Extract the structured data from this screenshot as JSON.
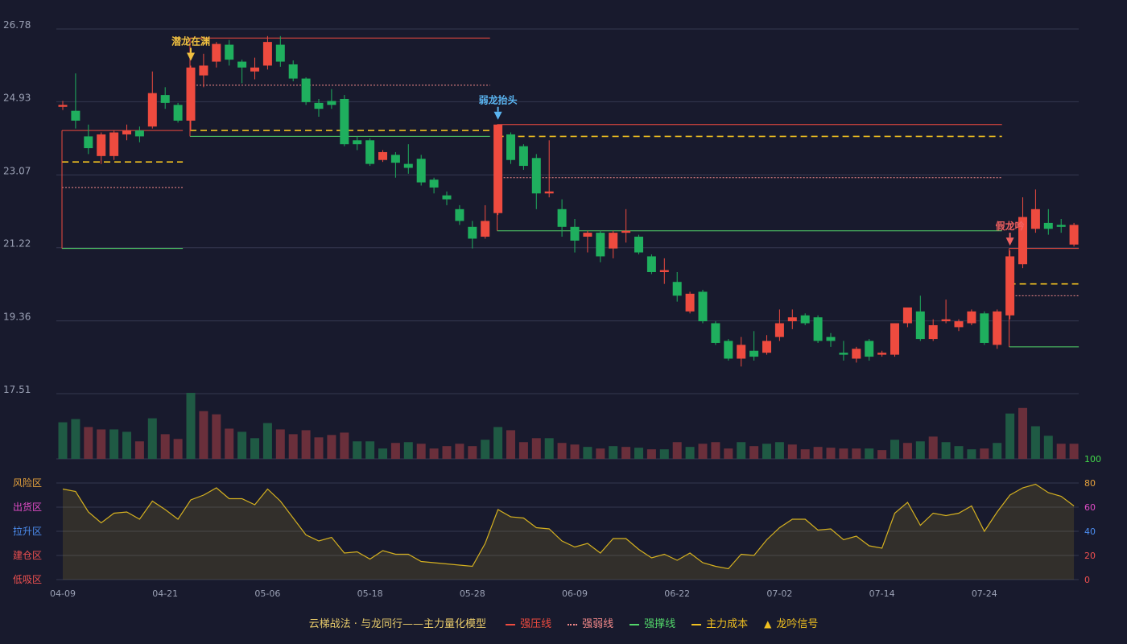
{
  "chart_data": {
    "type": "candlestick",
    "price_axis": {
      "ticks": [
        26.78,
        24.93,
        23.07,
        21.22,
        19.36,
        17.51
      ],
      "min": 17.51,
      "max": 26.78,
      "grid": true
    },
    "date_labels": [
      {
        "i": 0,
        "label": "04-09"
      },
      {
        "i": 8,
        "label": "04-21"
      },
      {
        "i": 16,
        "label": "05-06"
      },
      {
        "i": 24,
        "label": "05-18"
      },
      {
        "i": 32,
        "label": "05-28"
      },
      {
        "i": 40,
        "label": "06-09"
      },
      {
        "i": 48,
        "label": "06-22"
      },
      {
        "i": 56,
        "label": "07-02"
      },
      {
        "i": 64,
        "label": "07-14"
      },
      {
        "i": 72,
        "label": "07-24"
      }
    ],
    "candles": [
      [
        24.8,
        24.85,
        24.72,
        24.95
      ],
      [
        24.7,
        24.45,
        24.25,
        25.65
      ],
      [
        24.05,
        23.75,
        23.6,
        24.35
      ],
      [
        23.55,
        24.1,
        23.35,
        24.15
      ],
      [
        23.55,
        24.15,
        23.45,
        24.2
      ],
      [
        24.1,
        24.2,
        23.95,
        24.35
      ],
      [
        24.2,
        24.05,
        23.9,
        24.3
      ],
      [
        24.3,
        25.15,
        24.25,
        25.7
      ],
      [
        25.1,
        24.9,
        24.75,
        25.3
      ],
      [
        24.85,
        24.45,
        24.4,
        24.9
      ],
      [
        24.45,
        25.8,
        24.2,
        25.85
      ],
      [
        25.6,
        25.85,
        25.3,
        26.15
      ],
      [
        25.95,
        26.4,
        25.8,
        26.45
      ],
      [
        26.38,
        26.0,
        25.85,
        26.5
      ],
      [
        25.95,
        25.8,
        25.4,
        26.0
      ],
      [
        25.7,
        25.8,
        25.5,
        26.05
      ],
      [
        25.85,
        26.45,
        25.75,
        26.6
      ],
      [
        26.38,
        25.95,
        25.82,
        26.6
      ],
      [
        25.88,
        25.52,
        25.45,
        25.98
      ],
      [
        25.52,
        24.92,
        24.85,
        25.55
      ],
      [
        24.9,
        24.75,
        24.55,
        25.0
      ],
      [
        24.95,
        24.85,
        24.75,
        25.25
      ],
      [
        25.0,
        23.85,
        23.8,
        25.1
      ],
      [
        23.95,
        23.85,
        23.7,
        24.05
      ],
      [
        23.95,
        23.35,
        23.3,
        24.0
      ],
      [
        23.45,
        23.65,
        23.4,
        23.7
      ],
      [
        23.58,
        23.38,
        23.0,
        23.65
      ],
      [
        23.35,
        23.25,
        23.1,
        23.85
      ],
      [
        23.48,
        22.88,
        22.8,
        23.58
      ],
      [
        22.95,
        22.75,
        22.6,
        23.0
      ],
      [
        22.55,
        22.45,
        22.3,
        22.65
      ],
      [
        22.2,
        21.9,
        21.8,
        22.3
      ],
      [
        21.75,
        21.45,
        21.2,
        21.9
      ],
      [
        21.5,
        21.9,
        21.45,
        22.3
      ],
      [
        22.1,
        24.35,
        22.05,
        24.35
      ],
      [
        24.1,
        23.45,
        23.35,
        24.15
      ],
      [
        23.8,
        23.3,
        23.2,
        23.85
      ],
      [
        23.5,
        22.6,
        22.2,
        23.6
      ],
      [
        22.6,
        22.65,
        22.5,
        23.95
      ],
      [
        22.2,
        21.75,
        21.5,
        22.45
      ],
      [
        21.75,
        21.4,
        21.1,
        21.95
      ],
      [
        21.5,
        21.6,
        21.1,
        21.65
      ],
      [
        21.6,
        21.0,
        20.85,
        21.65
      ],
      [
        21.2,
        21.6,
        20.95,
        21.65
      ],
      [
        21.6,
        21.65,
        21.35,
        22.2
      ],
      [
        21.5,
        21.1,
        21.05,
        21.55
      ],
      [
        21.0,
        20.6,
        20.55,
        21.05
      ],
      [
        20.6,
        20.65,
        20.3,
        20.95
      ],
      [
        20.35,
        20.0,
        19.85,
        20.6
      ],
      [
        19.6,
        20.05,
        19.55,
        20.1
      ],
      [
        20.1,
        19.35,
        19.3,
        20.15
      ],
      [
        19.3,
        18.8,
        18.75,
        19.35
      ],
      [
        18.85,
        18.4,
        18.35,
        18.9
      ],
      [
        18.4,
        18.75,
        18.2,
        18.95
      ],
      [
        18.6,
        18.45,
        18.35,
        19.1
      ],
      [
        18.55,
        18.85,
        18.5,
        19.0
      ],
      [
        18.95,
        19.3,
        18.85,
        19.65
      ],
      [
        19.35,
        19.45,
        19.15,
        19.65
      ],
      [
        19.5,
        19.3,
        19.25,
        19.55
      ],
      [
        19.45,
        18.85,
        18.8,
        19.5
      ],
      [
        18.95,
        18.85,
        18.7,
        19.05
      ],
      [
        18.55,
        18.5,
        18.35,
        18.85
      ],
      [
        18.4,
        18.65,
        18.3,
        18.7
      ],
      [
        18.85,
        18.45,
        18.35,
        18.9
      ],
      [
        18.5,
        18.55,
        18.45,
        18.6
      ],
      [
        18.5,
        19.3,
        18.45,
        19.3
      ],
      [
        19.3,
        19.7,
        19.2,
        19.7
      ],
      [
        19.6,
        18.9,
        18.85,
        20.0
      ],
      [
        18.9,
        19.25,
        18.85,
        19.4
      ],
      [
        19.35,
        19.4,
        19.3,
        19.9
      ],
      [
        19.2,
        19.35,
        19.1,
        19.4
      ],
      [
        19.3,
        19.6,
        19.25,
        19.65
      ],
      [
        19.55,
        18.8,
        18.75,
        19.6
      ],
      [
        18.75,
        19.6,
        18.65,
        19.65
      ],
      [
        19.5,
        21.0,
        19.4,
        21.15
      ],
      [
        20.8,
        22.0,
        20.7,
        22.5
      ],
      [
        21.7,
        22.2,
        21.6,
        22.7
      ],
      [
        21.85,
        21.7,
        21.55,
        22.2
      ],
      [
        21.8,
        21.75,
        21.6,
        21.95
      ],
      [
        21.3,
        21.8,
        21.25,
        21.85
      ]
    ],
    "volumes": [
      [
        46,
        "down"
      ],
      [
        50,
        "down"
      ],
      [
        40,
        "up"
      ],
      [
        37,
        "up"
      ],
      [
        37,
        "down"
      ],
      [
        34,
        "down"
      ],
      [
        22,
        "up"
      ],
      [
        51,
        "down"
      ],
      [
        31,
        "up"
      ],
      [
        25,
        "up"
      ],
      [
        83,
        "down"
      ],
      [
        60,
        "up"
      ],
      [
        56,
        "up"
      ],
      [
        38,
        "up"
      ],
      [
        34,
        "down"
      ],
      [
        26,
        "down"
      ],
      [
        45,
        "down"
      ],
      [
        37,
        "up"
      ],
      [
        31,
        "up"
      ],
      [
        36,
        "up"
      ],
      [
        27,
        "up"
      ],
      [
        30,
        "up"
      ],
      [
        33,
        "up"
      ],
      [
        22,
        "down"
      ],
      [
        22,
        "down"
      ],
      [
        13,
        "down"
      ],
      [
        20,
        "up"
      ],
      [
        21,
        "down"
      ],
      [
        19,
        "up"
      ],
      [
        13,
        "up"
      ],
      [
        16,
        "up"
      ],
      [
        19,
        "up"
      ],
      [
        16,
        "up"
      ],
      [
        24,
        "down"
      ],
      [
        40,
        "down"
      ],
      [
        36,
        "up"
      ],
      [
        21,
        "up"
      ],
      [
        26,
        "up"
      ],
      [
        26,
        "down"
      ],
      [
        20,
        "up"
      ],
      [
        18,
        "up"
      ],
      [
        15,
        "down"
      ],
      [
        13,
        "up"
      ],
      [
        16,
        "down"
      ],
      [
        15,
        "up"
      ],
      [
        14,
        "down"
      ],
      [
        12,
        "up"
      ],
      [
        12,
        "down"
      ],
      [
        21,
        "up"
      ],
      [
        15,
        "down"
      ],
      [
        19,
        "up"
      ],
      [
        21,
        "up"
      ],
      [
        13,
        "up"
      ],
      [
        21,
        "down"
      ],
      [
        16,
        "up"
      ],
      [
        19,
        "down"
      ],
      [
        21,
        "down"
      ],
      [
        18,
        "up"
      ],
      [
        12,
        "up"
      ],
      [
        15,
        "up"
      ],
      [
        14,
        "up"
      ],
      [
        13,
        "up"
      ],
      [
        13,
        "up"
      ],
      [
        13,
        "down"
      ],
      [
        11,
        "up"
      ],
      [
        24,
        "down"
      ],
      [
        20,
        "up"
      ],
      [
        22,
        "down"
      ],
      [
        28,
        "up"
      ],
      [
        21,
        "down"
      ],
      [
        16,
        "down"
      ],
      [
        12,
        "down"
      ],
      [
        13,
        "up"
      ],
      [
        20,
        "down"
      ],
      [
        57,
        "down"
      ],
      [
        64,
        "up"
      ],
      [
        41,
        "down"
      ],
      [
        29,
        "down"
      ],
      [
        19,
        "up"
      ],
      [
        19,
        "up"
      ]
    ],
    "volume_axis_label": "100",
    "volume_colors": {
      "up": "#6a2f3b",
      "down": "#1f5a44"
    },
    "indicator": {
      "values": [
        75,
        73,
        56,
        47,
        55,
        56,
        50,
        65,
        58,
        50,
        66,
        70,
        76,
        67,
        67,
        62,
        75,
        65,
        51,
        37,
        32,
        35,
        22,
        23,
        17,
        24,
        21,
        21,
        15,
        14,
        13,
        12,
        11,
        30,
        58,
        52,
        51,
        43,
        42,
        32,
        27,
        30,
        22,
        34,
        34,
        25,
        18,
        21,
        16,
        22,
        14,
        11,
        9,
        21,
        20,
        33,
        43,
        50,
        50,
        41,
        42,
        33,
        36,
        28,
        26,
        55,
        64,
        45,
        55,
        53,
        55,
        61,
        40,
        56,
        70,
        76,
        79,
        72,
        69,
        61
      ],
      "axis_ticks": [
        100,
        80,
        60,
        40,
        20,
        0
      ],
      "axis_tick_colors": [
        "#42d84a",
        "#e6a23c",
        "#e04cc6",
        "#4c8df0",
        "#f05050",
        "#f05050"
      ],
      "zones": [
        {
          "label": "风险区",
          "level": 80,
          "color": "#e6a23c"
        },
        {
          "label": "出货区",
          "level": 60,
          "color": "#e04cc6"
        },
        {
          "label": "拉升区",
          "level": 40,
          "color": "#4c8df0"
        },
        {
          "label": "建仓区",
          "level": 20,
          "color": "#f05050"
        },
        {
          "label": "低吸区",
          "level": 0,
          "color": "#f05050"
        }
      ]
    },
    "segments": [
      {
        "i0": 0,
        "i1": 9,
        "strong_press": 24.2,
        "weak_line": 22.75,
        "support": 21.2,
        "cost": 23.4
      },
      {
        "i0": 10,
        "i1": 33,
        "strong_press": 26.55,
        "weak_line": 25.35,
        "support": 24.05,
        "cost": 24.2
      },
      {
        "i0": 34,
        "i1": 73,
        "strong_press": 24.35,
        "weak_line": 23.0,
        "support": 21.65,
        "cost": 24.05
      },
      {
        "i0": 74,
        "i1": 79,
        "strong_press": 21.2,
        "weak_line": 20.0,
        "support": 18.7,
        "cost": 20.3
      }
    ],
    "signals": [
      {
        "i": 10,
        "label": "潜龙在渊",
        "color": "#f0c040"
      },
      {
        "i": 34,
        "label": "弱龙抬头",
        "color": "#5ab4f0"
      },
      {
        "i": 74,
        "label": "假龙吟",
        "color": "#f06060"
      }
    ],
    "colors": {
      "up": "#ee4b3f",
      "down": "#1faf5e",
      "strong_press": "#ee4b3f",
      "weak_line": "#f48a8a",
      "support": "#52d66a",
      "cost": "#f0c020",
      "indicator_line": "#d4b020"
    },
    "legend": {
      "title": "云梯战法 · 与龙同行——主力量化模型",
      "items": [
        {
          "label": "强压线",
          "color": "#ee4b3f",
          "style": "solid"
        },
        {
          "label": "强弱线",
          "color": "#f48a8a",
          "style": "dotted"
        },
        {
          "label": "强撑线",
          "color": "#52d66a",
          "style": "solid"
        },
        {
          "label": "主力成本",
          "color": "#f0c020",
          "style": "dashed"
        },
        {
          "label": "龙吟信号",
          "color": "#f0c020",
          "style": "triangle"
        }
      ]
    }
  }
}
